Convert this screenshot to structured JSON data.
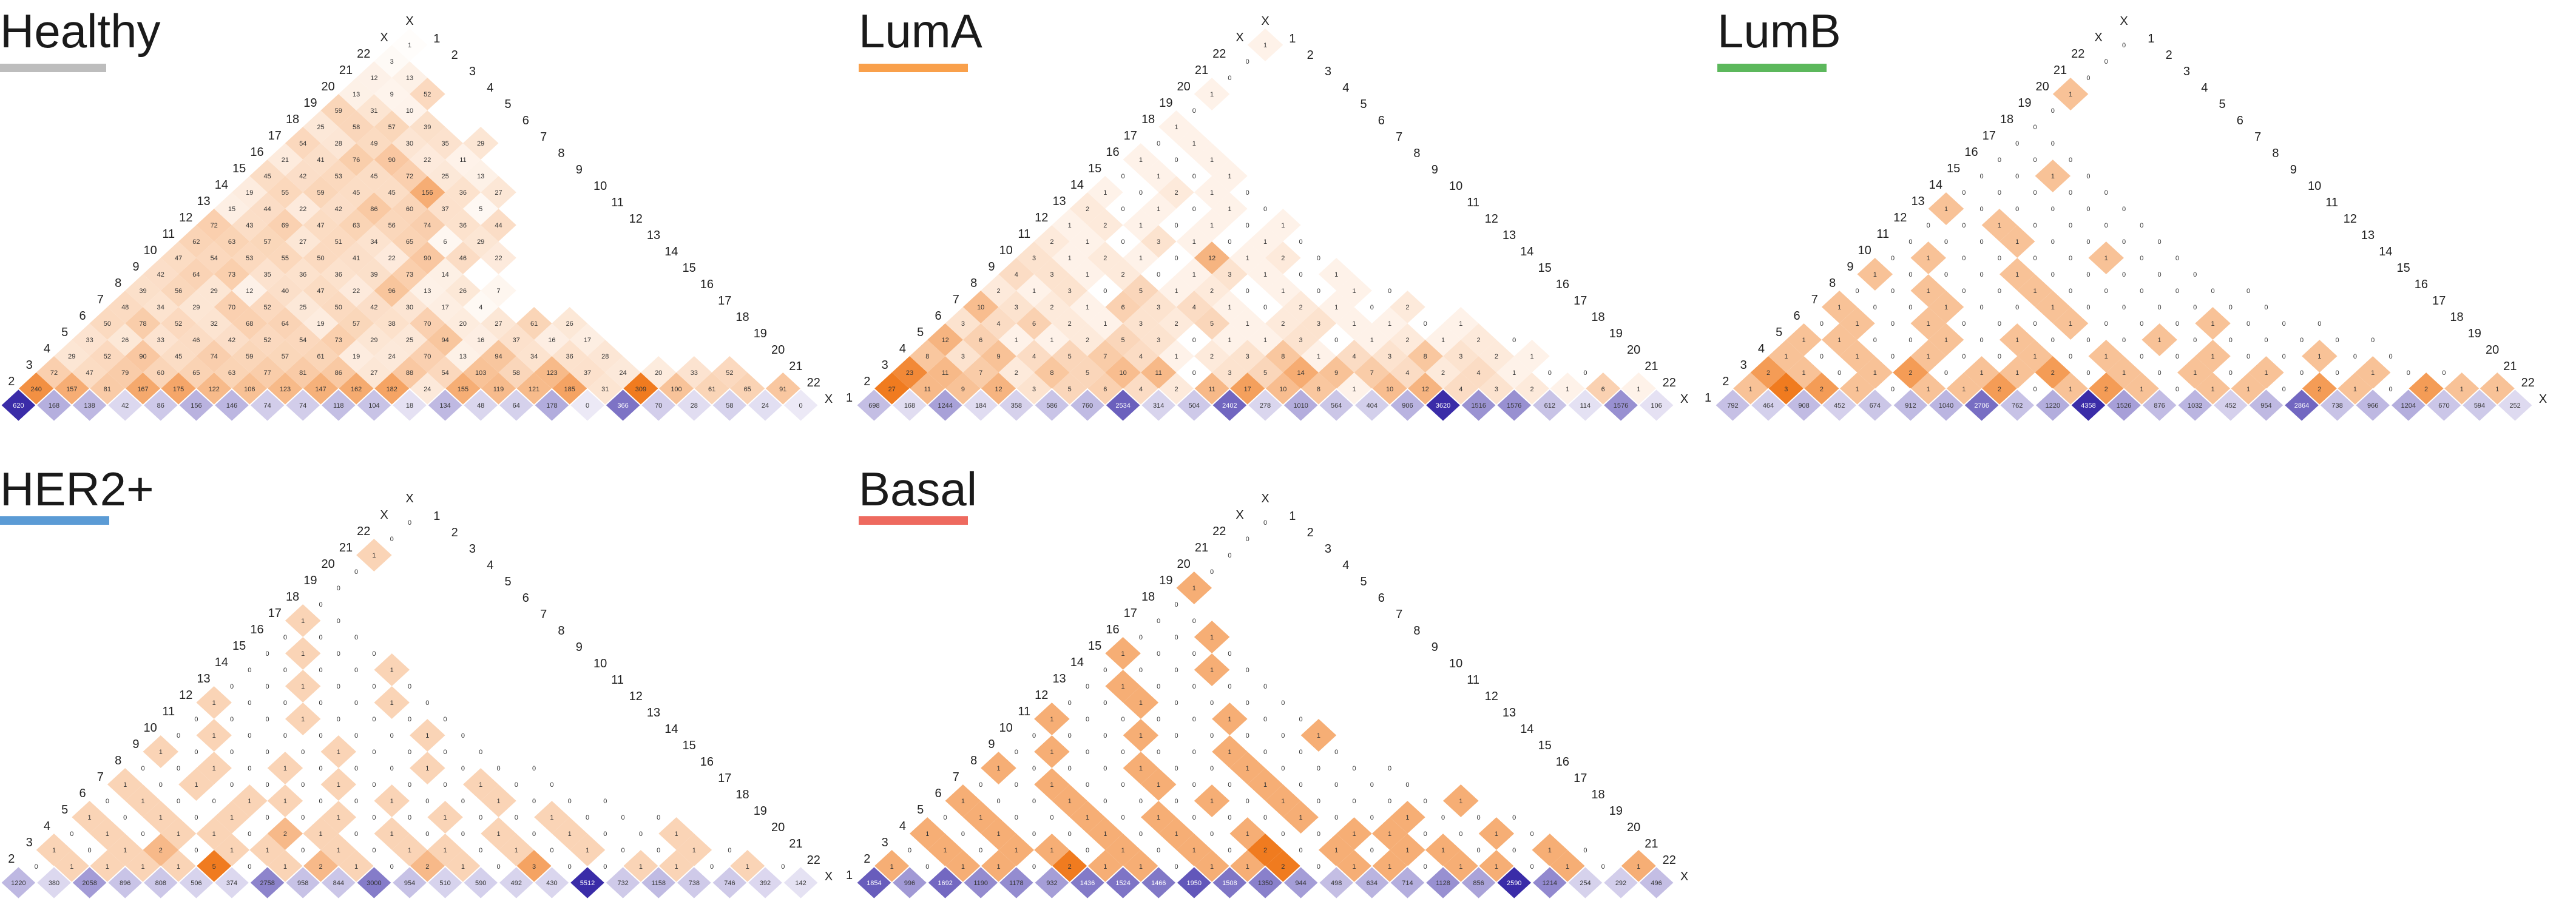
{
  "chart_data": [
    {
      "type": "heatmap",
      "title": "Healthy",
      "legend_color": "#bdbdbd",
      "labels": [
        "1",
        "2",
        "3",
        "4",
        "5",
        "6",
        "7",
        "8",
        "9",
        "10",
        "11",
        "12",
        "13",
        "14",
        "15",
        "16",
        "17",
        "18",
        "19",
        "20",
        "21",
        "22",
        "X"
      ],
      "diagonal": [
        620,
        168,
        138,
        42,
        86,
        156,
        146,
        74,
        74,
        118,
        104,
        18,
        134,
        48,
        64,
        178,
        0,
        366,
        70,
        28,
        58,
        24,
        0
      ],
      "offdiag_rows": [
        [
          240,
          157,
          81,
          167,
          175,
          122,
          106,
          123,
          147,
          162,
          182,
          24,
          155,
          119,
          121,
          185,
          31,
          309,
          100,
          61,
          65,
          91
        ],
        [
          72,
          47,
          79,
          60,
          65,
          63,
          77,
          81,
          86,
          27,
          88,
          54,
          103,
          58,
          123,
          37,
          24,
          20,
          33,
          52
        ],
        [
          29,
          52,
          90,
          45,
          74,
          59,
          57,
          61,
          19,
          24,
          70,
          13,
          94,
          34,
          36,
          28
        ],
        [
          33,
          26,
          33,
          46,
          42,
          52,
          54,
          73,
          29,
          25,
          94,
          16,
          37,
          16,
          17
        ],
        [
          50,
          78,
          52,
          32,
          68,
          64,
          19,
          57,
          38,
          70,
          20,
          27,
          61,
          26
        ],
        [
          48,
          34,
          29,
          70,
          52,
          25,
          50,
          42,
          30,
          17,
          4
        ],
        [
          39,
          56,
          29,
          12,
          40,
          47,
          22,
          96,
          13,
          26,
          7
        ],
        [
          42,
          64,
          73,
          35,
          36,
          36,
          39,
          73,
          14
        ],
        [
          47,
          54,
          53,
          55,
          50,
          41,
          22,
          90,
          46,
          22
        ],
        [
          62,
          63,
          57,
          27,
          51,
          34,
          65,
          6,
          29
        ],
        [
          72,
          43,
          69,
          47,
          63,
          56,
          74,
          36,
          44
        ],
        [
          15,
          44,
          22,
          42,
          86,
          60,
          37,
          5
        ],
        [
          19,
          55,
          59,
          45,
          45,
          156,
          36,
          27
        ],
        [
          45,
          42,
          53,
          45,
          72,
          25,
          13
        ],
        [
          21,
          41,
          76,
          90,
          22,
          11
        ],
        [
          54,
          28,
          49,
          30,
          35,
          29
        ],
        [
          25,
          58,
          57,
          39
        ],
        [
          59,
          31,
          10
        ],
        [
          13,
          9,
          52
        ],
        [
          12,
          13
        ],
        [
          3
        ],
        [
          1
        ]
      ]
    },
    {
      "type": "heatmap",
      "title": "LumA",
      "legend_color": "#f9a04b",
      "labels": [
        "1",
        "2",
        "3",
        "4",
        "5",
        "6",
        "7",
        "8",
        "9",
        "10",
        "11",
        "12",
        "13",
        "14",
        "15",
        "16",
        "17",
        "18",
        "19",
        "20",
        "21",
        "22",
        "X"
      ],
      "diagonal": [
        698,
        168,
        1244,
        184,
        358,
        586,
        760,
        2534,
        314,
        504,
        2402,
        278,
        1010,
        564,
        404,
        906,
        3620,
        1516,
        1576,
        612,
        114,
        1576,
        106
      ],
      "offdiag_rows": [
        [
          27,
          11,
          9,
          12,
          3,
          5,
          6,
          4,
          2,
          11,
          17,
          10,
          8,
          1,
          10,
          12,
          4,
          3,
          2,
          1,
          6,
          1
        ],
        [
          23,
          11,
          7,
          2,
          8,
          5,
          10,
          11,
          0,
          3,
          5,
          14,
          9,
          7,
          4,
          2,
          4,
          1,
          0,
          0
        ],
        [
          8,
          3,
          9,
          4,
          5,
          7,
          4,
          1,
          2,
          3,
          8,
          1,
          4,
          3,
          8,
          3,
          2,
          1
        ],
        [
          12,
          6,
          1,
          1,
          2,
          5,
          3,
          0,
          1,
          1,
          3,
          0,
          1,
          2,
          1,
          2,
          0
        ],
        [
          3,
          4,
          6,
          2,
          1,
          3,
          2,
          5,
          1,
          2,
          3,
          1,
          1,
          0,
          1
        ],
        [
          10,
          3,
          2,
          1,
          6,
          3,
          4,
          1,
          0,
          2,
          1,
          0,
          2
        ],
        [
          2,
          1,
          3,
          0,
          5,
          1,
          2,
          0,
          1,
          0,
          1,
          0
        ],
        [
          4,
          3,
          1,
          2,
          0,
          1,
          3,
          1,
          0,
          1
        ],
        [
          3,
          1,
          2,
          1,
          0,
          12,
          1,
          2,
          0
        ],
        [
          2,
          1,
          0,
          3,
          1,
          0,
          1,
          0
        ],
        [
          1,
          2,
          1,
          0,
          1,
          0,
          1
        ],
        [
          2,
          0,
          1,
          0,
          1,
          0
        ],
        [
          1,
          0,
          2,
          1,
          0
        ],
        [
          0,
          1,
          0,
          1
        ],
        [
          1,
          0,
          1
        ],
        [
          0,
          1
        ],
        [
          1
        ],
        [
          0
        ],
        [
          1
        ],
        [
          0
        ],
        [
          0
        ],
        [
          1
        ]
      ]
    },
    {
      "type": "heatmap",
      "title": "LumB",
      "legend_color": "#5cb85c",
      "labels": [
        "1",
        "2",
        "3",
        "4",
        "5",
        "6",
        "7",
        "8",
        "9",
        "10",
        "11",
        "12",
        "13",
        "14",
        "15",
        "16",
        "17",
        "18",
        "19",
        "20",
        "21",
        "22",
        "X"
      ],
      "diagonal": [
        792,
        464,
        908,
        452,
        674,
        912,
        1040,
        2706,
        762,
        1220,
        4358,
        1526,
        876,
        1032,
        452,
        954,
        2864,
        738,
        966,
        1204,
        670,
        594,
        252
      ],
      "offdiag_rows": [
        [
          1,
          3,
          2,
          1,
          0,
          1,
          1,
          2,
          0,
          1,
          2,
          1,
          0,
          1,
          1,
          0,
          2,
          1,
          0,
          2,
          1,
          1
        ],
        [
          2,
          1,
          0,
          1,
          2,
          0,
          1,
          1,
          2,
          0,
          1,
          0,
          1,
          0,
          1,
          0,
          0,
          1,
          0,
          0
        ],
        [
          1,
          0,
          1,
          0,
          1,
          0,
          0,
          1,
          0,
          1,
          0,
          0,
          1,
          0,
          0,
          1,
          0,
          0
        ],
        [
          1,
          1,
          0,
          0,
          1,
          0,
          1,
          0,
          0,
          0,
          1,
          0,
          0,
          0,
          0,
          0,
          0
        ],
        [
          0,
          1,
          0,
          1,
          0,
          0,
          0,
          1,
          0,
          0,
          0,
          1,
          0,
          0,
          0
        ],
        [
          1,
          0,
          0,
          1,
          0,
          0,
          1,
          0,
          0,
          0,
          0,
          0,
          0
        ],
        [
          0,
          0,
          1,
          0,
          0,
          1,
          0,
          0,
          0,
          0,
          0,
          0
        ],
        [
          1,
          0,
          0,
          0,
          1,
          0,
          0,
          0,
          0,
          0
        ],
        [
          0,
          1,
          0,
          0,
          0,
          0,
          1,
          0,
          0
        ],
        [
          0,
          0,
          0,
          1,
          0,
          0,
          0,
          0
        ],
        [
          0,
          0,
          1,
          0,
          0,
          0,
          0
        ],
        [
          1,
          0,
          0,
          0,
          0,
          0
        ],
        [
          0,
          0,
          0,
          0,
          0
        ],
        [
          0,
          0,
          1,
          0
        ],
        [
          0,
          0,
          0
        ],
        [
          0,
          0
        ],
        [
          0
        ],
        [
          0
        ],
        [
          1
        ],
        [
          0
        ],
        [
          0
        ],
        [
          0
        ]
      ]
    },
    {
      "type": "heatmap",
      "title": "HER2+",
      "legend_color": "#5b9bd5",
      "labels": [
        "1",
        "2",
        "3",
        "4",
        "5",
        "6",
        "7",
        "8",
        "9",
        "10",
        "11",
        "12",
        "13",
        "14",
        "15",
        "16",
        "17",
        "18",
        "19",
        "20",
        "21",
        "22",
        "X"
      ],
      "diagonal": [
        1220,
        380,
        2058,
        896,
        808,
        506,
        374,
        2758,
        958,
        844,
        3000,
        954,
        510,
        590,
        492,
        430,
        5512,
        732,
        1158,
        738,
        746,
        392,
        142
      ],
      "offdiag_rows": [
        [
          0,
          1,
          1,
          1,
          1,
          5,
          0,
          1,
          2,
          1,
          0,
          2,
          1,
          0,
          3,
          0,
          0,
          1,
          1,
          0,
          1,
          0
        ],
        [
          1,
          0,
          1,
          2,
          0,
          1,
          1,
          0,
          1,
          0,
          1,
          1,
          0,
          1,
          0,
          1,
          0,
          0,
          1,
          0
        ],
        [
          0,
          1,
          0,
          1,
          1,
          0,
          2,
          1,
          0,
          1,
          0,
          0,
          1,
          0,
          1,
          0,
          0,
          1
        ],
        [
          1,
          0,
          1,
          0,
          1,
          0,
          0,
          1,
          0,
          0,
          1,
          0,
          0,
          1,
          0,
          0,
          0
        ],
        [
          0,
          1,
          0,
          0,
          1,
          1,
          0,
          0,
          1,
          0,
          0,
          1,
          0,
          0,
          0
        ],
        [
          1,
          0,
          1,
          0,
          0,
          0,
          1,
          0,
          0,
          0,
          1,
          0,
          0
        ],
        [
          0,
          0,
          1,
          0,
          1,
          0,
          0,
          0,
          1,
          0,
          0,
          0
        ],
        [
          1,
          0,
          0,
          0,
          0,
          1,
          0,
          0,
          0,
          0
        ],
        [
          0,
          1,
          0,
          0,
          0,
          0,
          0,
          1,
          0
        ],
        [
          0,
          0,
          0,
          1,
          0,
          0,
          0,
          0
        ],
        [
          1,
          0,
          0,
          0,
          0,
          1,
          0
        ],
        [
          0,
          0,
          1,
          0,
          0,
          0
        ],
        [
          0,
          0,
          0,
          0,
          1
        ],
        [
          0,
          1,
          0,
          0
        ],
        [
          0,
          0,
          0
        ],
        [
          1,
          0
        ],
        [
          0
        ],
        [
          0
        ],
        [
          0
        ],
        [
          1
        ],
        [
          0
        ],
        [
          0
        ]
      ]
    },
    {
      "type": "heatmap",
      "title": "Basal",
      "legend_color": "#ee6a5f",
      "labels": [
        "1",
        "2",
        "3",
        "4",
        "5",
        "6",
        "7",
        "8",
        "9",
        "10",
        "11",
        "12",
        "13",
        "14",
        "15",
        "16",
        "17",
        "18",
        "19",
        "20",
        "21",
        "22",
        "X"
      ],
      "diagonal": [
        1854,
        996,
        1692,
        1190,
        1178,
        932,
        1436,
        1524,
        1466,
        1950,
        1508,
        1350,
        944,
        498,
        634,
        714,
        1128,
        856,
        2590,
        1214,
        254,
        292,
        496
      ],
      "offdiag_rows": [
        [
          1,
          0,
          1,
          1,
          0,
          2,
          1,
          1,
          0,
          1,
          1,
          2,
          0,
          1,
          1,
          0,
          1,
          1,
          0,
          1,
          0,
          1
        ],
        [
          0,
          1,
          0,
          1,
          1,
          0,
          1,
          0,
          1,
          0,
          2,
          0,
          1,
          0,
          1,
          1,
          0,
          0,
          1,
          0
        ],
        [
          1,
          0,
          1,
          0,
          0,
          1,
          0,
          1,
          0,
          1,
          0,
          0,
          1,
          1,
          0,
          0,
          1,
          0
        ],
        [
          0,
          1,
          0,
          0,
          1,
          0,
          1,
          0,
          0,
          0,
          1,
          0,
          0,
          1,
          0,
          0,
          0
        ],
        [
          1,
          0,
          0,
          1,
          0,
          0,
          0,
          1,
          0,
          1,
          0,
          0,
          0,
          0,
          1
        ],
        [
          0,
          0,
          1,
          0,
          0,
          1,
          0,
          0,
          1,
          0,
          0,
          0,
          0
        ],
        [
          1,
          0,
          0,
          0,
          1,
          0,
          0,
          1,
          0,
          0,
          0,
          0
        ],
        [
          0,
          1,
          0,
          0,
          0,
          0,
          1,
          0,
          0,
          0
        ],
        [
          0,
          0,
          0,
          1,
          0,
          0,
          0,
          0,
          1
        ],
        [
          1,
          0,
          0,
          0,
          0,
          1,
          0,
          0
        ],
        [
          0,
          0,
          1,
          0,
          0,
          0,
          0
        ],
        [
          0,
          1,
          0,
          0,
          0,
          0
        ],
        [
          0,
          0,
          0,
          1,
          0
        ],
        [
          1,
          0,
          0,
          0
        ],
        [
          0,
          0,
          1
        ],
        [
          0,
          0
        ],
        [
          0
        ],
        [
          1
        ],
        [
          0
        ],
        [
          0
        ],
        [
          0
        ],
        [
          0
        ]
      ]
    }
  ]
}
